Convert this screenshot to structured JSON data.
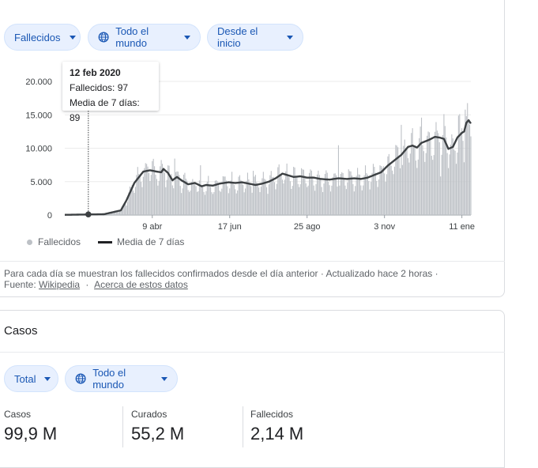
{
  "filters": {
    "metric": "Fallecidos",
    "region": "Todo el mundo",
    "range": "Desde el inicio"
  },
  "icons": {
    "globe": "globe-icon",
    "caret": "chevron-down-icon"
  },
  "colors": {
    "accent": "#1a57b4",
    "chip_bg": "#e8f0fe",
    "bar": "#bdc1c6",
    "avg_line": "#3c4043"
  },
  "chart_data": {
    "type": "bar",
    "title": "",
    "series_names": [
      "Fallecidos",
      "Media de 7 días"
    ],
    "y_ticks": [
      "20.000",
      "15.000",
      "10.000",
      "5.000",
      "0"
    ],
    "x_ticks": [
      "9 abr",
      "17 jun",
      "25 ago",
      "3 nov",
      "11 ene"
    ],
    "ylim": [
      0,
      20000
    ],
    "x_range": [
      "22 ene 2020",
      "18 ene 2021"
    ],
    "avg_keypoints": [
      [
        0,
        30
      ],
      [
        20,
        80
      ],
      [
        35,
        120
      ],
      [
        50,
        700
      ],
      [
        55,
        2200
      ],
      [
        62,
        4800
      ],
      [
        70,
        6500
      ],
      [
        76,
        6700
      ],
      [
        82,
        6500
      ],
      [
        86,
        6400
      ],
      [
        88,
        6900
      ],
      [
        92,
        6300
      ],
      [
        96,
        5200
      ],
      [
        100,
        5700
      ],
      [
        104,
        5200
      ],
      [
        110,
        4600
      ],
      [
        116,
        4800
      ],
      [
        122,
        4300
      ],
      [
        126,
        4500
      ],
      [
        132,
        4400
      ],
      [
        138,
        4700
      ],
      [
        146,
        4900
      ],
      [
        152,
        4800
      ],
      [
        158,
        4900
      ],
      [
        164,
        4700
      ],
      [
        170,
        4500
      ],
      [
        176,
        4700
      ],
      [
        182,
        5000
      ],
      [
        188,
        5500
      ],
      [
        194,
        6200
      ],
      [
        198,
        6000
      ],
      [
        204,
        5700
      ],
      [
        210,
        5800
      ],
      [
        216,
        5600
      ],
      [
        222,
        5600
      ],
      [
        228,
        5400
      ],
      [
        236,
        5300
      ],
      [
        244,
        5500
      ],
      [
        252,
        5400
      ],
      [
        258,
        5500
      ],
      [
        264,
        5400
      ],
      [
        270,
        5600
      ],
      [
        276,
        6000
      ],
      [
        282,
        6400
      ],
      [
        288,
        7400
      ],
      [
        294,
        8200
      ],
      [
        300,
        9000
      ],
      [
        306,
        10200
      ],
      [
        310,
        10400
      ],
      [
        314,
        10100
      ],
      [
        318,
        10800
      ],
      [
        324,
        11200
      ],
      [
        330,
        11700
      ],
      [
        334,
        11600
      ],
      [
        338,
        11400
      ],
      [
        342,
        9900
      ],
      [
        346,
        10200
      ],
      [
        350,
        11600
      ],
      [
        354,
        12300
      ],
      [
        356,
        12500
      ],
      [
        358,
        13800
      ],
      [
        360,
        14200
      ],
      [
        362,
        13700
      ]
    ],
    "tooltip": {
      "date": "12 feb 2020",
      "deaths_label": "Fallecidos: 97",
      "avg_label": "Media de 7 días: 89",
      "day_index": 21,
      "value": 89
    }
  },
  "legend": {
    "bars": "Fallecidos",
    "line": "Media de 7 días"
  },
  "footnote": {
    "text": "Para cada día se muestran los fallecidos confirmados desde el día anterior · Actualizado hace 2 horas  ·",
    "source_prefix": "Fuente:",
    "source_link": "Wikipedia",
    "dot": "·",
    "about_link": "Acerca de estos datos"
  },
  "cases_section": {
    "title": "Casos",
    "filters": {
      "type": "Total",
      "region": "Todo el mundo"
    },
    "stats": [
      {
        "label": "Casos",
        "value": "99,9 M"
      },
      {
        "label": "Curados",
        "value": "55,2 M"
      },
      {
        "label": "Fallecidos",
        "value": "2,14 M"
      }
    ]
  }
}
